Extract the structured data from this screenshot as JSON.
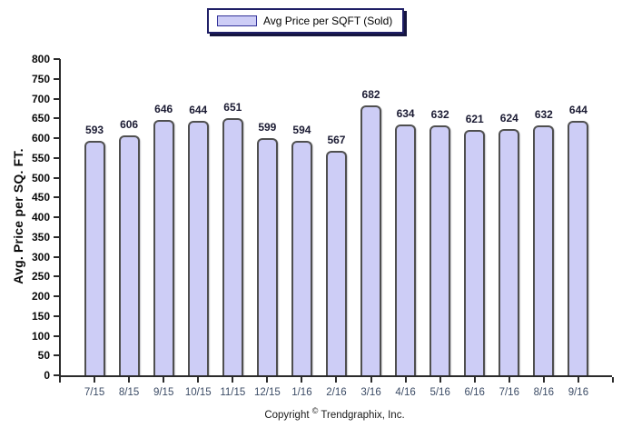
{
  "legend": {
    "label": "Avg Price per SQFT (Sold)"
  },
  "footer": {
    "pre": "Copyright",
    "symbol": "©",
    "post": "Trendgraphix, Inc."
  },
  "colors": {
    "bar_fill": "#cdcdf6",
    "bar_border": "#4f4f4f",
    "legend_border": "#1f1f66",
    "axis": "#2b2b2b",
    "x_label": "#3c4c66",
    "value_label": "#1b1b33"
  },
  "chart_data": {
    "type": "bar",
    "title": "",
    "series_name": "Avg Price per SQFT (Sold)",
    "categories": [
      "7/15",
      "8/15",
      "9/15",
      "10/15",
      "11/15",
      "12/15",
      "1/16",
      "2/16",
      "3/16",
      "4/16",
      "5/16",
      "6/16",
      "7/16",
      "8/16",
      "9/16"
    ],
    "values": [
      593,
      606,
      646,
      644,
      651,
      599,
      594,
      567,
      682,
      634,
      632,
      621,
      624,
      632,
      644
    ],
    "xlabel": "",
    "ylabel": "Avg. Price per SQ. FT.",
    "ylim": [
      0,
      800
    ],
    "ytick_step": 50,
    "grid": false,
    "value_labels": true,
    "legend_position": "top-center"
  }
}
